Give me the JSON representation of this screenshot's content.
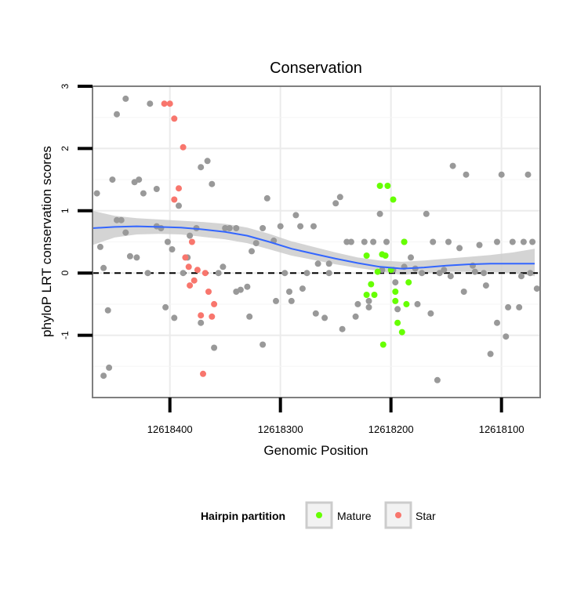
{
  "chart_data": {
    "type": "scatter",
    "title": "Conservation",
    "xlabel": "Genomic Position",
    "ylabel": "phyloP LRT conservation scores",
    "x_reversed": true,
    "xlim": [
      12618470,
      12618065
    ],
    "ylim": [
      -2,
      3
    ],
    "x_ticks": [
      12618400,
      12618300,
      12618200,
      12618100
    ],
    "x_tick_labels": [
      "12618400",
      "12618300",
      "12618200",
      "12618100"
    ],
    "y_ticks": [
      -1,
      0,
      1,
      2,
      3
    ],
    "y_tick_labels": [
      "-1",
      "0",
      "1",
      "2",
      "3"
    ],
    "grid": true,
    "reference_line": {
      "y": 0,
      "style": "dashed"
    },
    "legend": {
      "title": "Hairpin partition",
      "position": "bottom",
      "entries": [
        {
          "label": "Mature",
          "color": "#66ff00"
        },
        {
          "label": "Star",
          "color": "#f8766d"
        }
      ]
    },
    "colors": {
      "other": "#999999",
      "mature": "#66ff00",
      "star": "#f8766d",
      "smooth": "#3366ff",
      "ribbon": "#cccccc"
    },
    "smooth": {
      "x": [
        12618470,
        12618450,
        12618430,
        12618410,
        12618390,
        12618370,
        12618350,
        12618330,
        12618310,
        12618290,
        12618270,
        12618250,
        12618230,
        12618210,
        12618190,
        12618170,
        12618150,
        12618130,
        12618110,
        12618090,
        12618070
      ],
      "y": [
        0.72,
        0.74,
        0.75,
        0.74,
        0.73,
        0.7,
        0.66,
        0.6,
        0.5,
        0.39,
        0.31,
        0.23,
        0.16,
        0.1,
        0.07,
        0.09,
        0.12,
        0.14,
        0.15,
        0.15,
        0.15
      ],
      "lower": [
        0.45,
        0.57,
        0.62,
        0.63,
        0.62,
        0.58,
        0.54,
        0.48,
        0.38,
        0.28,
        0.21,
        0.14,
        0.08,
        0.03,
        -0.03,
        0.0,
        0.02,
        0.02,
        0.02,
        0.0,
        -0.05
      ],
      "upper": [
        1.0,
        0.92,
        0.88,
        0.86,
        0.84,
        0.82,
        0.79,
        0.73,
        0.63,
        0.51,
        0.42,
        0.33,
        0.25,
        0.2,
        0.18,
        0.2,
        0.23,
        0.26,
        0.29,
        0.33,
        0.39
      ]
    },
    "series": [
      {
        "name": "Other",
        "x": [
          12618466,
          12618463,
          12618460,
          12618456,
          12618452,
          12618448,
          12618444,
          12618440,
          12618436,
          12618432,
          12618428,
          12618424,
          12618418,
          12618412,
          12618408,
          12618402,
          12618398,
          12618392,
          12618388,
          12618382,
          12618376,
          12618372,
          12618366,
          12618362,
          12618356,
          12618350,
          12618346,
          12618340,
          12618336,
          12618330,
          12618326,
          12618322,
          12618316,
          12618312,
          12618306,
          12618300,
          12618296,
          12618290,
          12618286,
          12618282,
          12618276,
          12618270,
          12618266,
          12618260,
          12618256,
          12618250,
          12618246,
          12618240,
          12618236,
          12618230,
          12618224,
          12618220,
          12618216,
          12618210,
          12618204,
          12618198,
          12618194,
          12618188,
          12618182,
          12618178,
          12618172,
          12618168,
          12618162,
          12618158,
          12618152,
          12618148,
          12618144,
          12618138,
          12618132,
          12618126,
          12618120,
          12618116,
          12618110,
          12618104,
          12618100,
          12618096,
          12618090,
          12618084,
          12618080,
          12618076,
          12618072,
          12618460,
          12618455,
          12618448,
          12618440,
          12618430,
          12618420,
          12618412,
          12618404,
          12618396,
          12618384,
          12618372,
          12618360,
          12618352,
          12618340,
          12618328,
          12618316,
          12618304,
          12618292,
          12618280,
          12618268,
          12618256,
          12618244,
          12618232,
          12618220,
          12618208,
          12618196,
          12618188,
          12618176,
          12618164,
          12618156,
          12618146,
          12618134,
          12618124,
          12618114,
          12618104,
          12618094,
          12618082,
          12618074,
          12618068
        ],
        "y": [
          1.28,
          0.42,
          0.08,
          -0.6,
          1.5,
          2.55,
          0.85,
          2.8,
          0.27,
          1.46,
          1.5,
          1.28,
          2.72,
          0.75,
          0.72,
          0.5,
          0.38,
          1.08,
          0.0,
          0.6,
          0.72,
          1.7,
          1.8,
          1.43,
          0.0,
          0.72,
          0.72,
          0.72,
          -0.27,
          -0.22,
          0.35,
          0.48,
          0.72,
          1.2,
          0.52,
          0.75,
          0.0,
          -0.45,
          0.93,
          0.75,
          0.0,
          0.75,
          0.15,
          -0.72,
          0.0,
          1.12,
          1.22,
          0.5,
          0.5,
          -0.5,
          0.5,
          -0.45,
          0.5,
          0.95,
          0.5,
          0.05,
          -0.58,
          0.5,
          0.25,
          0.07,
          0.0,
          0.95,
          0.5,
          -1.72,
          0.05,
          0.5,
          1.72,
          0.4,
          1.58,
          0.12,
          0.45,
          0.0,
          -1.3,
          0.5,
          1.58,
          -1.02,
          0.5,
          -0.55,
          0.5,
          1.58,
          0.5,
          -1.65,
          -1.52,
          0.85,
          0.65,
          0.25,
          0.0,
          1.35,
          -0.55,
          -0.72,
          0.25,
          -0.8,
          -1.2,
          0.1,
          -0.3,
          -0.7,
          -1.15,
          -0.45,
          -0.3,
          -0.25,
          -0.65,
          0.15,
          -0.9,
          -0.7,
          -0.55,
          0.05,
          -0.15,
          0.1,
          -0.5,
          -0.65,
          0.0,
          -0.05,
          -0.3,
          0.02,
          -0.2,
          -0.8,
          -0.55,
          -0.05,
          0.0,
          -0.25
        ],
        "color": "#999999"
      },
      {
        "name": "Mature",
        "x": [
          12618222,
          12618218,
          12618215,
          12618212,
          12618210,
          12618207,
          12618205,
          12618203,
          12618200,
          12618198,
          12618196,
          12618194,
          12618190,
          12618188,
          12618186,
          12618184,
          12618222,
          12618208,
          12618196
        ],
        "y": [
          0.28,
          -0.18,
          -0.35,
          0.02,
          1.4,
          -1.15,
          0.28,
          1.4,
          0.05,
          1.18,
          -0.3,
          -0.8,
          -0.95,
          0.5,
          -0.5,
          -0.15,
          -0.35,
          0.3,
          -0.45
        ],
        "color": "#66ff00"
      },
      {
        "name": "Star",
        "x": [
          12618405,
          12618400,
          12618396,
          12618392,
          12618388,
          12618386,
          12618383,
          12618380,
          12618378,
          12618375,
          12618372,
          12618370,
          12618368,
          12618365,
          12618362,
          12618360,
          12618396,
          12618382
        ],
        "y": [
          2.72,
          2.72,
          2.48,
          1.36,
          2.02,
          0.25,
          0.1,
          0.5,
          -0.12,
          0.05,
          -0.68,
          -1.62,
          0.0,
          -0.3,
          -0.7,
          -0.5,
          1.18,
          -0.2
        ],
        "color": "#f8766d"
      }
    ]
  }
}
